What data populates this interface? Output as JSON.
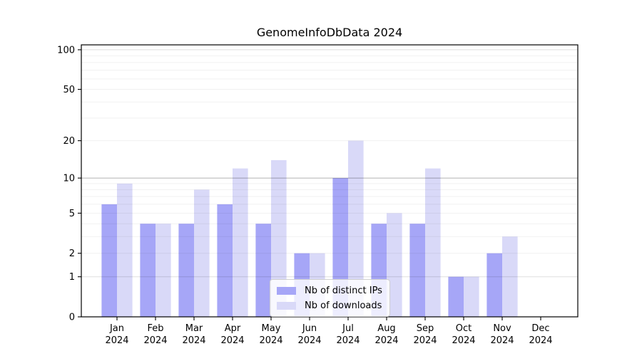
{
  "title": "GenomeInfoDbData 2024",
  "legend": {
    "items": [
      {
        "label": "Nb of distinct IPs",
        "color": "#a6a6f7"
      },
      {
        "label": "Nb of downloads",
        "color": "#d9d9f8"
      }
    ]
  },
  "chart_data": {
    "type": "bar",
    "title": "GenomeInfoDbData 2024",
    "categories": [
      "Jan 2024",
      "Feb 2024",
      "Mar 2024",
      "Apr 2024",
      "May 2024",
      "Jun 2024",
      "Jul 2024",
      "Aug 2024",
      "Sep 2024",
      "Oct 2024",
      "Nov 2024",
      "Dec 2024"
    ],
    "series": [
      {
        "name": "Nb of distinct IPs",
        "color": "#a6a6f7",
        "values": [
          6,
          4,
          4,
          6,
          4,
          2,
          10,
          4,
          4,
          1,
          2,
          0
        ]
      },
      {
        "name": "Nb of downloads",
        "color": "#d9d9f8",
        "values": [
          9,
          4,
          8,
          12,
          14,
          2,
          20,
          5,
          12,
          1,
          3,
          0
        ]
      }
    ],
    "xlabel": "",
    "ylabel": "",
    "y_axis": {
      "scale": "log1p",
      "tick_values": [
        0,
        1,
        2,
        5,
        10,
        20,
        50,
        100
      ],
      "minor_gridlines": [
        2,
        3,
        4,
        5,
        6,
        7,
        8,
        9,
        20,
        30,
        40,
        50,
        60,
        70,
        80,
        90
      ],
      "major_gridlines": [
        1,
        10,
        100
      ],
      "range": [
        0,
        109
      ]
    },
    "grid": true,
    "legend_position": "lower center inside plot"
  }
}
